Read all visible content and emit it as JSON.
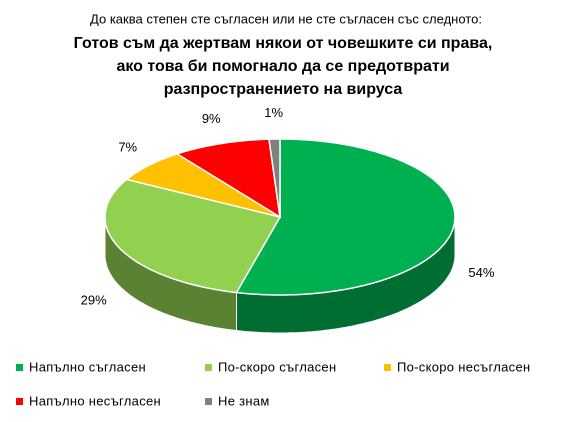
{
  "chart_data": {
    "type": "pie3d",
    "subtitle": "До каква степен сте съгласен или не сте съгласен със следното:",
    "title": [
      "Готов съм да жертвам някои от човешките си права,",
      "ако това би помогнало да се предотврати",
      "разпространението на вируса"
    ],
    "categories": [
      "Напълно съгласен",
      "По-скоро съгласен",
      "По-скоро несъгласен",
      "Напълно несъгласен",
      "Не знам"
    ],
    "values": [
      54,
      29,
      7,
      9,
      1
    ],
    "value_labels": [
      "54%",
      "29%",
      "7%",
      "9%",
      "1%"
    ],
    "colors": [
      "#00b050",
      "#92d050",
      "#ffc000",
      "#ff0000",
      "#808080"
    ],
    "legend": "bottom"
  }
}
